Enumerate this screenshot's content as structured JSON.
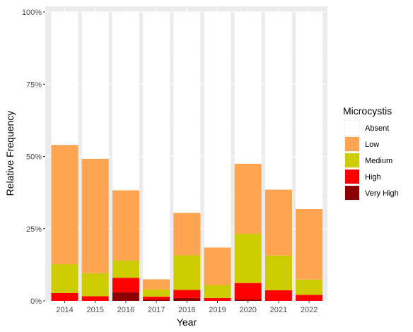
{
  "chart_data": {
    "type": "bar",
    "stacked": true,
    "xlabel": "Year",
    "ylabel": "Relative Frequency",
    "categories": [
      "2014",
      "2015",
      "2016",
      "2017",
      "2018",
      "2019",
      "2020",
      "2021",
      "2022"
    ],
    "ylim": [
      0,
      1
    ],
    "yticks": [
      0,
      0.25,
      0.5,
      0.75,
      1.0
    ],
    "ytick_labels": [
      "0%",
      "25%",
      "50%",
      "75%",
      "100%"
    ],
    "grid": true,
    "legend": {
      "title": "Microcystis",
      "position": "right"
    },
    "series": [
      {
        "name": "Very High",
        "color": "#8B0000",
        "values": [
          0.0,
          0.0,
          0.03,
          0.005,
          0.01,
          0.0,
          0.005,
          0.0,
          0.0
        ]
      },
      {
        "name": "High",
        "color": "#FF0000",
        "values": [
          0.027,
          0.016,
          0.05,
          0.01,
          0.028,
          0.01,
          0.057,
          0.037,
          0.021
        ]
      },
      {
        "name": "Medium",
        "color": "#CCCC00",
        "values": [
          0.1,
          0.08,
          0.06,
          0.025,
          0.12,
          0.045,
          0.17,
          0.12,
          0.053
        ]
      },
      {
        "name": "Low",
        "color": "#FFA552",
        "values": [
          0.413,
          0.396,
          0.243,
          0.035,
          0.147,
          0.13,
          0.243,
          0.228,
          0.244
        ]
      },
      {
        "name": "Absent",
        "color": "#FFFFFF",
        "values": [
          0.46,
          0.508,
          0.617,
          0.925,
          0.695,
          0.815,
          0.525,
          0.615,
          0.682
        ]
      }
    ]
  }
}
